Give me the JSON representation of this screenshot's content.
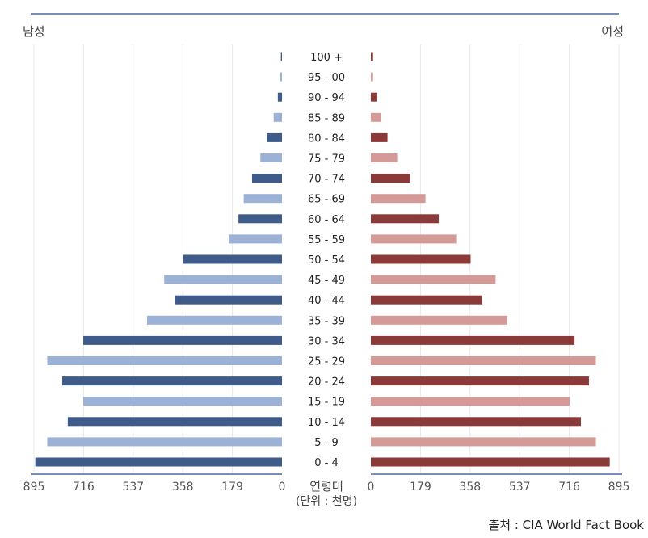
{
  "chart_data": {
    "type": "bar",
    "subtype": "population-pyramid",
    "left_label": "남성",
    "right_label": "여성",
    "center_header": "연령대",
    "unit_note": "(단위 : 천명)",
    "source": "출처 : CIA World Fact Book",
    "categories": [
      "100 +",
      "95 - 00",
      "90 - 94",
      "85 - 89",
      "80 - 84",
      "75 - 79",
      "70 - 74",
      "65 - 69",
      "60 - 64",
      "55 - 59",
      "50 - 54",
      "45 - 49",
      "40 - 44",
      "35 - 39",
      "30 - 34",
      "25 - 29",
      "20 - 24",
      "15 - 19",
      "10 - 14",
      "5 - 9",
      "0 - 4"
    ],
    "series": [
      {
        "name": "남성",
        "values": [
          4,
          6,
          15,
          30,
          55,
          78,
          108,
          138,
          157,
          192,
          357,
          425,
          387,
          487,
          717,
          847,
          793,
          717,
          773,
          847,
          890
        ]
      },
      {
        "name": "여성",
        "values": [
          8,
          8,
          22,
          38,
          60,
          95,
          142,
          197,
          245,
          308,
          360,
          450,
          402,
          492,
          735,
          812,
          787,
          717,
          758,
          812,
          862
        ]
      }
    ],
    "x_ticks_left": [
      "895",
      "716",
      "537",
      "358",
      "179",
      "0"
    ],
    "x_ticks_right": [
      "0",
      "179",
      "358",
      "537",
      "716",
      "895"
    ],
    "xlim": [
      0,
      895
    ],
    "colors": {
      "male_dark": "#3e5b8a",
      "male_light": "#9bb1d6",
      "female_dark": "#8b3a3a",
      "female_light": "#d49a98",
      "axis": "#4a6aa0",
      "grid": "#e8e8e8"
    },
    "grid": true
  }
}
